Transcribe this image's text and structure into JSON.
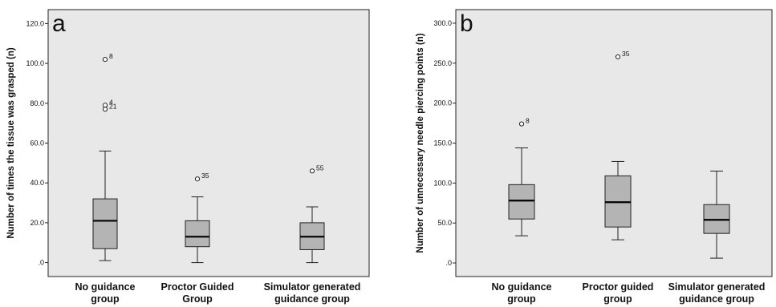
{
  "chart_data": [
    {
      "type": "box",
      "panel_label": "a",
      "ylabel": "Number of times the tissue was grasped (n)",
      "categories": [
        "No guidance group",
        "Proctor Guided Group",
        "Simulator generated guidance group"
      ],
      "category_lines": [
        [
          "No guidance",
          "group"
        ],
        [
          "Proctor Guided",
          "Group"
        ],
        [
          "Simulator generated",
          "guidance group"
        ]
      ],
      "yticks": [
        0,
        20,
        40,
        60,
        80,
        100,
        120
      ],
      "ytick_labels": [
        ".0",
        "20.0",
        "40.0",
        "60.0",
        "80.0",
        "100.0",
        "120.0"
      ],
      "ylim": [
        -7,
        127
      ],
      "grid": false,
      "boxes": [
        {
          "whisker_low": 1,
          "q1": 7,
          "median": 21,
          "q3": 32,
          "whisker_high": 56,
          "outliers": [
            {
              "value": 102,
              "label": "8"
            },
            {
              "value": 79,
              "label": "4"
            },
            {
              "value": 77,
              "label": "21"
            }
          ]
        },
        {
          "whisker_low": 0,
          "q1": 8,
          "median": 13,
          "q3": 21,
          "whisker_high": 33,
          "outliers": [
            {
              "value": 42,
              "label": "35"
            }
          ]
        },
        {
          "whisker_low": 0,
          "q1": 6.5,
          "median": 13,
          "q3": 20,
          "whisker_high": 28,
          "outliers": [
            {
              "value": 46,
              "label": "55"
            }
          ]
        }
      ]
    },
    {
      "type": "box",
      "panel_label": "b",
      "ylabel": "Number of unnecessary needle piercing points (n)",
      "categories": [
        "No guidance group",
        "Proctor guided group",
        "Simulator generated guidance group"
      ],
      "category_lines": [
        [
          "No guidance",
          "group"
        ],
        [
          "Proctor guided",
          "group"
        ],
        [
          "Simulator generated",
          "guidance group"
        ]
      ],
      "yticks": [
        0,
        50,
        100,
        150,
        200,
        250,
        300
      ],
      "ytick_labels": [
        ".0",
        "50.0",
        "100.0",
        "150.0",
        "200.0",
        "250.0",
        "300.0"
      ],
      "ylim": [
        -17,
        317
      ],
      "grid": false,
      "boxes": [
        {
          "whisker_low": 34,
          "q1": 55,
          "median": 78,
          "q3": 98,
          "whisker_high": 144,
          "outliers": [
            {
              "value": 174,
              "label": "8"
            }
          ]
        },
        {
          "whisker_low": 29,
          "q1": 45,
          "median": 76,
          "q3": 109,
          "whisker_high": 127,
          "outliers": [
            {
              "value": 258,
              "label": "35"
            }
          ]
        },
        {
          "whisker_low": 6,
          "q1": 37,
          "median": 54,
          "q3": 73,
          "whisker_high": 115,
          "outliers": []
        }
      ]
    }
  ],
  "colors": {
    "plot_background": "#e8e8e8",
    "box_fill": "#b4b4b4",
    "stroke": "#222222"
  }
}
